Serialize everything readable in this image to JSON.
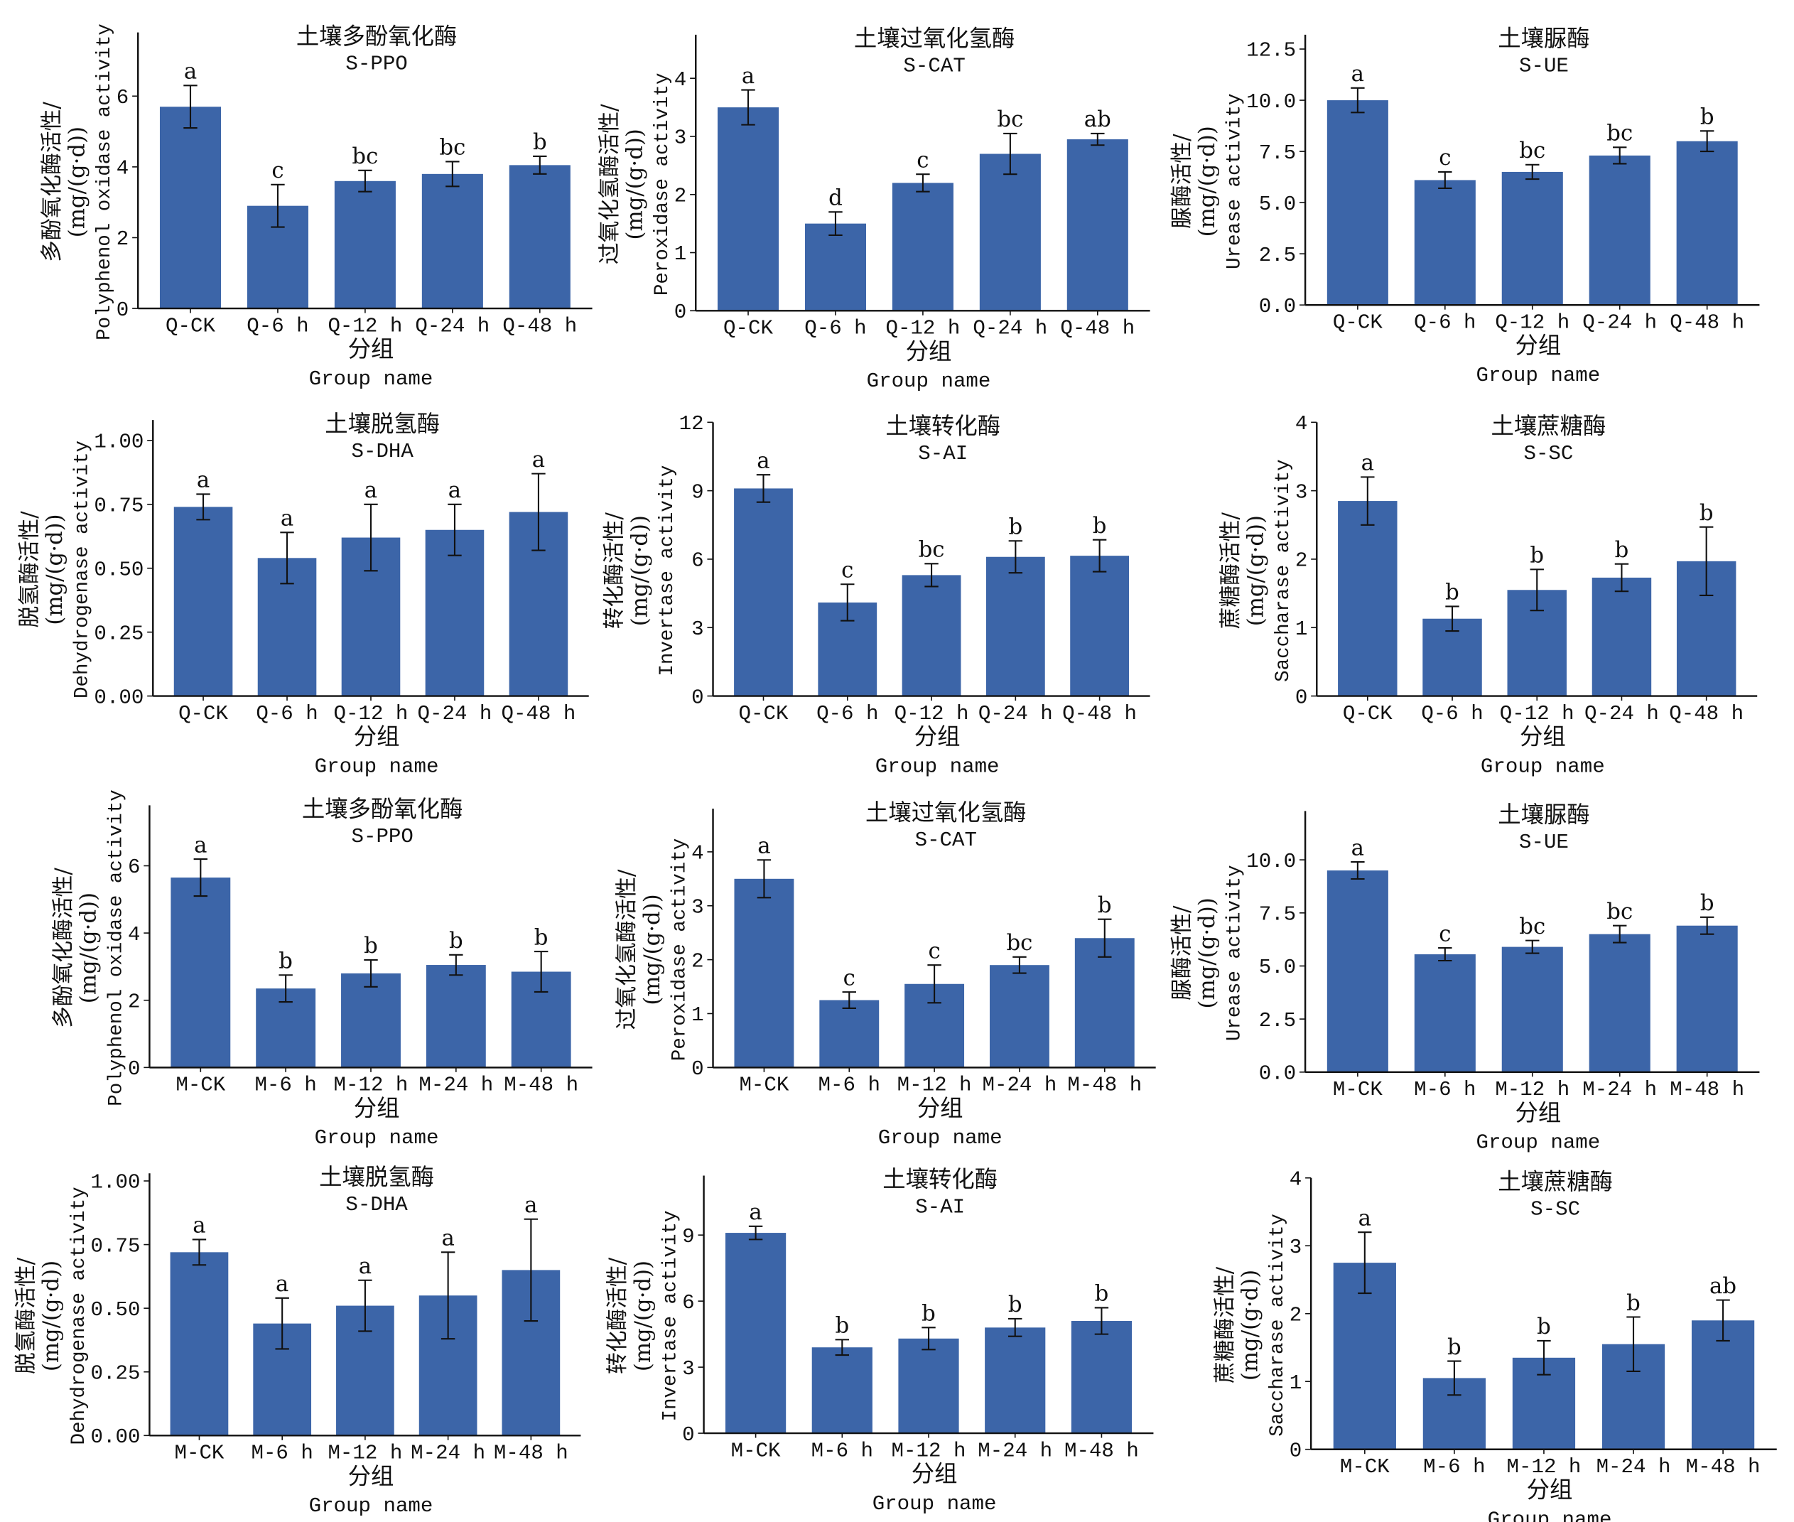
{
  "colors": {
    "bar": "#3c65a8",
    "axis": "#111111"
  },
  "x_label_cn": "分组",
  "x_label_en": "Group name",
  "chart_data": [
    {
      "type": "bar",
      "title_cn": "土壤多酚氧化酶",
      "title_en": "S-PPO",
      "ylabel": [
        "多酚氧化酶活性/",
        "(mg/(g·d))",
        "Polyphenol oxidase activity"
      ],
      "categories": [
        "Q-CK",
        "Q-6 h",
        "Q-12 h",
        "Q-24 h",
        "Q-48 h"
      ],
      "values": [
        5.7,
        2.9,
        3.6,
        3.8,
        4.05
      ],
      "errors": [
        0.6,
        0.6,
        0.3,
        0.35,
        0.25
      ],
      "letters": [
        "a",
        "c",
        "bc",
        "bc",
        "b"
      ],
      "yticks": [
        "0",
        "2",
        "4",
        "6"
      ],
      "ytick_values": [
        0,
        2,
        4,
        6
      ],
      "ylim": [
        0,
        7.8
      ]
    },
    {
      "type": "bar",
      "title_cn": "土壤过氧化氢酶",
      "title_en": "S-CAT",
      "ylabel": [
        "过氧化氢酶活性/",
        "(mg/(g·d))",
        "Peroxidase activity"
      ],
      "categories": [
        "Q-CK",
        "Q-6 h",
        "Q-12 h",
        "Q-24 h",
        "Q-48 h"
      ],
      "values": [
        3.5,
        1.5,
        2.2,
        2.7,
        2.95
      ],
      "errors": [
        0.3,
        0.2,
        0.15,
        0.35,
        0.1
      ],
      "letters": [
        "a",
        "d",
        "c",
        "bc",
        "ab"
      ],
      "yticks": [
        "0",
        "1",
        "2",
        "3",
        "4"
      ],
      "ytick_values": [
        0,
        1,
        2,
        3,
        4
      ],
      "ylim": [
        0,
        4.75
      ]
    },
    {
      "type": "bar",
      "title_cn": "土壤脲酶",
      "title_en": "S-UE",
      "ylabel": [
        "脲酶活性/",
        "(mg/(g·d))",
        "Urease activity"
      ],
      "categories": [
        "Q-CK",
        "Q-6 h",
        "Q-12 h",
        "Q-24 h",
        "Q-48 h"
      ],
      "values": [
        10.0,
        6.1,
        6.5,
        7.3,
        8.0
      ],
      "errors": [
        0.6,
        0.4,
        0.35,
        0.4,
        0.5
      ],
      "letters": [
        "a",
        "c",
        "bc",
        "bc",
        "b"
      ],
      "yticks": [
        "0.0",
        "2.5",
        "5.0",
        "7.5",
        "10.0",
        "12.5"
      ],
      "ytick_values": [
        0,
        2.5,
        5,
        7.5,
        10,
        12.5
      ],
      "ylim": [
        0,
        13.2
      ]
    },
    {
      "type": "bar",
      "title_cn": "土壤脱氢酶",
      "title_en": "S-DHA",
      "ylabel": [
        "脱氢酶活性/",
        "(mg/(g·d))",
        "Dehydrogenase activity"
      ],
      "categories": [
        "Q-CK",
        "Q-6 h",
        "Q-12 h",
        "Q-24 h",
        "Q-48 h"
      ],
      "values": [
        0.74,
        0.54,
        0.62,
        0.65,
        0.72
      ],
      "errors": [
        0.05,
        0.1,
        0.13,
        0.1,
        0.15
      ],
      "letters": [
        "a",
        "a",
        "a",
        "a",
        "a"
      ],
      "yticks": [
        "0.00",
        "0.25",
        "0.50",
        "0.75",
        "1.00"
      ],
      "ytick_values": [
        0,
        0.25,
        0.5,
        0.75,
        1
      ],
      "ylim": [
        0,
        1.08
      ]
    },
    {
      "type": "bar",
      "title_cn": "土壤转化酶",
      "title_en": "S-AI",
      "ylabel": [
        "转化酶活性/",
        "(mg/(g·d))",
        "Invertase activity"
      ],
      "categories": [
        "Q-CK",
        "Q-6 h",
        "Q-12 h",
        "Q-24 h",
        "Q-48 h"
      ],
      "values": [
        9.1,
        4.1,
        5.3,
        6.1,
        6.15
      ],
      "errors": [
        0.6,
        0.8,
        0.5,
        0.7,
        0.7
      ],
      "letters": [
        "a",
        "c",
        "bc",
        "b",
        "b"
      ],
      "yticks": [
        "0",
        "3",
        "6",
        "9",
        "12"
      ],
      "ytick_values": [
        0,
        3,
        6,
        9,
        12
      ],
      "ylim": [
        0,
        12
      ]
    },
    {
      "type": "bar",
      "title_cn": "土壤蔗糖酶",
      "title_en": "S-SC",
      "ylabel": [
        "蔗糖酶活性/",
        "(mg/(g·d))",
        "Saccharase activity"
      ],
      "categories": [
        "Q-CK",
        "Q-6 h",
        "Q-12 h",
        "Q-24 h",
        "Q-48 h"
      ],
      "values": [
        2.85,
        1.13,
        1.55,
        1.73,
        1.97
      ],
      "errors": [
        0.35,
        0.18,
        0.3,
        0.2,
        0.5
      ],
      "letters": [
        "a",
        "b",
        "b",
        "b",
        "b"
      ],
      "yticks": [
        "0",
        "1",
        "2",
        "3",
        "4"
      ],
      "ytick_values": [
        0,
        1,
        2,
        3,
        4
      ],
      "ylim": [
        0,
        4
      ]
    },
    {
      "type": "bar",
      "title_cn": "土壤多酚氧化酶",
      "title_en": "S-PPO",
      "ylabel": [
        "多酚氧化酶活性/",
        "(mg/(g·d))",
        "Polyphenol oxidase activity"
      ],
      "categories": [
        "M-CK",
        "M-6 h",
        "M-12 h",
        "M-24 h",
        "M-48 h"
      ],
      "values": [
        5.65,
        2.35,
        2.8,
        3.05,
        2.85
      ],
      "errors": [
        0.55,
        0.4,
        0.4,
        0.3,
        0.6
      ],
      "letters": [
        "a",
        "b",
        "b",
        "b",
        "b"
      ],
      "yticks": [
        "0",
        "2",
        "4",
        "6"
      ],
      "ytick_values": [
        0,
        2,
        4,
        6
      ],
      "ylim": [
        0,
        7.8
      ]
    },
    {
      "type": "bar",
      "title_cn": "土壤过氧化氢酶",
      "title_en": "S-CAT",
      "ylabel": [
        "过氧化氢酶活性/",
        "(mg/(g·d))",
        "Peroxidase activity"
      ],
      "categories": [
        "M-CK",
        "M-6 h",
        "M-12 h",
        "M-24 h",
        "M-48 h"
      ],
      "values": [
        3.5,
        1.25,
        1.55,
        1.9,
        2.4
      ],
      "errors": [
        0.35,
        0.15,
        0.35,
        0.15,
        0.35
      ],
      "letters": [
        "a",
        "c",
        "c",
        "bc",
        "b"
      ],
      "yticks": [
        "0",
        "1",
        "2",
        "3",
        "4"
      ],
      "ytick_values": [
        0,
        1,
        2,
        3,
        4
      ],
      "ylim": [
        0,
        4.8
      ]
    },
    {
      "type": "bar",
      "title_cn": "土壤脲酶",
      "title_en": "S-UE",
      "ylabel": [
        "脲酶活性/",
        "(mg/(g·d))",
        "Urease activity"
      ],
      "categories": [
        "M-CK",
        "M-6 h",
        "M-12 h",
        "M-24 h",
        "M-48 h"
      ],
      "values": [
        9.5,
        5.55,
        5.9,
        6.5,
        6.9
      ],
      "errors": [
        0.4,
        0.3,
        0.3,
        0.4,
        0.4
      ],
      "letters": [
        "a",
        "c",
        "bc",
        "bc",
        "b"
      ],
      "yticks": [
        "0.0",
        "2.5",
        "5.0",
        "7.5",
        "10.0"
      ],
      "ytick_values": [
        0,
        2.5,
        5,
        7.5,
        10
      ],
      "ylim": [
        0,
        12.3
      ]
    },
    {
      "type": "bar",
      "title_cn": "土壤脱氢酶",
      "title_en": "S-DHA",
      "ylabel": [
        "脱氢酶活性/",
        "(mg/(g·d))",
        "Dehydrogenase activity"
      ],
      "categories": [
        "M-CK",
        "M-6 h",
        "M-12 h",
        "M-24 h",
        "M-48 h"
      ],
      "values": [
        0.72,
        0.44,
        0.51,
        0.55,
        0.65
      ],
      "errors": [
        0.05,
        0.1,
        0.1,
        0.17,
        0.2
      ],
      "letters": [
        "a",
        "a",
        "a",
        "a",
        "a"
      ],
      "yticks": [
        "0.00",
        "0.25",
        "0.50",
        "0.75",
        "1.00"
      ],
      "ytick_values": [
        0,
        0.25,
        0.5,
        0.75,
        1
      ],
      "ylim": [
        0,
        1.03
      ]
    },
    {
      "type": "bar",
      "title_cn": "土壤转化酶",
      "title_en": "S-AI",
      "ylabel": [
        "转化酶活性/",
        "(mg/(g·d))",
        "Invertase activity"
      ],
      "categories": [
        "M-CK",
        "M-6 h",
        "M-12 h",
        "M-24 h",
        "M-48 h"
      ],
      "values": [
        9.1,
        3.9,
        4.3,
        4.8,
        5.1
      ],
      "errors": [
        0.3,
        0.35,
        0.5,
        0.4,
        0.6
      ],
      "letters": [
        "a",
        "b",
        "b",
        "b",
        "b"
      ],
      "yticks": [
        "0",
        "3",
        "6",
        "9"
      ],
      "ytick_values": [
        0,
        3,
        6,
        9
      ],
      "ylim": [
        0,
        11.7
      ]
    },
    {
      "type": "bar",
      "title_cn": "土壤蔗糖酶",
      "title_en": "S-SC",
      "ylabel": [
        "蔗糖酶活性/",
        "(mg/(g·d))",
        "Saccharase activity"
      ],
      "categories": [
        "M-CK",
        "M-6 h",
        "M-12 h",
        "M-24 h",
        "M-48 h"
      ],
      "values": [
        2.75,
        1.05,
        1.35,
        1.55,
        1.9
      ],
      "errors": [
        0.45,
        0.25,
        0.25,
        0.4,
        0.3
      ],
      "letters": [
        "a",
        "b",
        "b",
        "b",
        "ab"
      ],
      "yticks": [
        "0",
        "1",
        "2",
        "3",
        "4"
      ],
      "ytick_values": [
        0,
        1,
        2,
        3,
        4
      ],
      "ylim": [
        0,
        4
      ]
    }
  ]
}
